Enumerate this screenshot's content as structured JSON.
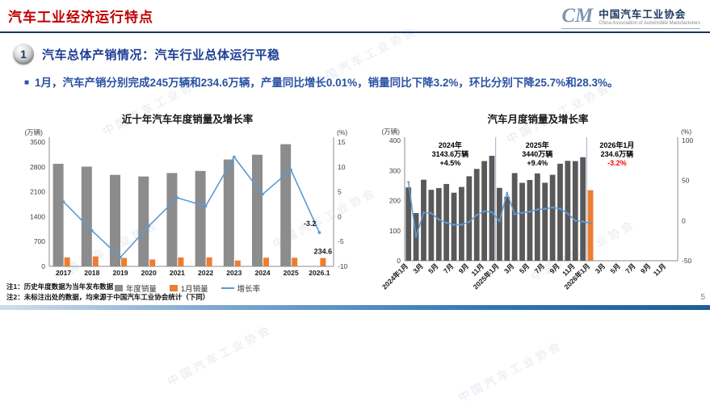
{
  "page": {
    "title": "汽车工业经济运行特点",
    "page_number": "5",
    "footnotes": [
      "注1：历史年度数据为当年发布数据",
      "注2：未标注出处的数据，均来源于中国汽车工业协会统计（下同）"
    ]
  },
  "logo": {
    "monogram": "CM",
    "name_cn": "中国汽车工业协会",
    "name_en": "China Association of Automobile Manufacturers"
  },
  "watermark": {
    "text": "中国汽车工业协会"
  },
  "section": {
    "number": "1",
    "title": "汽车总体产销情况：",
    "subtitle": "汽车行业总体运行平稳"
  },
  "summary": {
    "bullet": "■",
    "text": "1月，汽车产销分别完成245万辆和234.6万辆，产量同比增长0.01%，销量同比下降3.2%，环比分别下降25.7%和28.3%。"
  },
  "colors": {
    "title_red": "#C00000",
    "header_navy": "#17375E",
    "body_blue": "#2952A3",
    "bar_gray": "#8C8C8C",
    "bar_dark_gray": "#595959",
    "bar_orange": "#ED7D31",
    "line_blue": "#5B9BD5",
    "negative_red": "#FF0000"
  },
  "chart_data": [
    {
      "type": "bar",
      "title": "近十年汽车年度销量及增长率",
      "unit_left": "(万辆)",
      "unit_right": "(%)",
      "categories": [
        "2017",
        "2018",
        "2019",
        "2020",
        "2021",
        "2022",
        "2023",
        "2024",
        "2025",
        "2026.1"
      ],
      "series": [
        {
          "name": "年度销量",
          "type": "bar",
          "color": "#8C8C8C",
          "values": [
            2887.9,
            2808.1,
            2576.9,
            2531.1,
            2627.5,
            2686.4,
            3009.4,
            3143.6,
            3440,
            null
          ]
        },
        {
          "name": "1月销量",
          "type": "bar",
          "color": "#ED7D31",
          "values": [
            252,
            280.9,
            236.7,
            194.1,
            250.3,
            253.1,
            164.9,
            243.9,
            242.3,
            234.6
          ]
        },
        {
          "name": "增长率",
          "type": "line",
          "axis": "right",
          "color": "#5B9BD5",
          "values": [
            3.0,
            -2.8,
            -8.2,
            -1.9,
            3.8,
            2.1,
            12.0,
            4.5,
            9.4,
            -3.2
          ]
        }
      ],
      "ylim_left": [
        0,
        3500
      ],
      "yticks_left": [
        0,
        700,
        1400,
        2100,
        2800,
        3500
      ],
      "ylim_right": [
        -10,
        15
      ],
      "yticks_right": [
        -10,
        -5,
        0,
        5,
        10,
        15
      ],
      "point_labels": {
        "growth_2026_1": "-3.2",
        "jan_2026_sales": "234.6"
      },
      "legend_position": "bottom",
      "grid": false
    },
    {
      "type": "bar",
      "title": "汽车月度销量及增长率",
      "unit_left": "(万辆)",
      "unit_right": "(%)",
      "x_tick_labels": [
        "2024年1月",
        "3月",
        "5月",
        "7月",
        "9月",
        "11月",
        "2025年1月",
        "3月",
        "5月",
        "7月",
        "9月",
        "11月",
        "2026年1月",
        "3月",
        "5月",
        "7月",
        "9月",
        "11月"
      ],
      "x_slots": 36,
      "bar_series": {
        "name": "月度销量",
        "color": "#595959",
        "highlight_color": "#ED7D31",
        "highlight_index": 24,
        "values": [
          243.9,
          158.4,
          269.4,
          235.9,
          241.7,
          255.2,
          226.2,
          245.3,
          280.9,
          305.3,
          331.4,
          348.9,
          242.3,
          212.9,
          291.5,
          259.0,
          268.6,
          290.4,
          259.3,
          285.7,
          322.6,
          332.2,
          331.3,
          344.2,
          234.6
        ]
      },
      "line_series": {
        "name": "增长率",
        "axis": "right",
        "color": "#5B9BD5",
        "values": [
          47.9,
          -19.9,
          9.9,
          9.3,
          1.5,
          -2.7,
          -5.2,
          -5.0,
          -1.7,
          7.0,
          11.7,
          10.5,
          -0.6,
          34.4,
          8.2,
          9.8,
          11.2,
          13.8,
          14.7,
          16.4,
          14.9,
          8.8,
          0.0,
          -1.3,
          -3.2
        ]
      },
      "ylim_left": [
        0,
        400
      ],
      "yticks_left": [
        0,
        100,
        200,
        300,
        400
      ],
      "ylim_right": [
        -50,
        100
      ],
      "yticks_right": [
        -50,
        0,
        50,
        100
      ],
      "annotations": [
        {
          "lines": [
            "2024年",
            "3143.6万辆",
            "+4.5%"
          ],
          "value_color": "#000000",
          "center_month": 6
        },
        {
          "lines": [
            "2025年",
            "3440万辆",
            "+9.4%"
          ],
          "value_color": "#000000",
          "center_month": 17.5
        },
        {
          "lines": [
            "2026年1月",
            "234.6万辆",
            "-3.2%"
          ],
          "value_color": "#FF0000",
          "center_month": 28
        }
      ],
      "separator_months": [
        12,
        24
      ],
      "grid": false
    }
  ]
}
